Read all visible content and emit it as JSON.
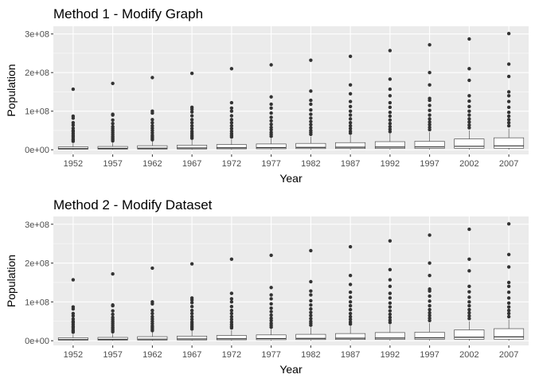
{
  "chart_data": [
    {
      "type": "boxplot",
      "title": "Method 1 - Modify Graph",
      "xlabel": "Year",
      "ylabel": "Population",
      "ylim": [
        -12000000.0,
        320000000.0
      ],
      "yticks": [
        0,
        100000000,
        200000000,
        300000000
      ],
      "ytick_labels": [
        "0e+00",
        "1e+08",
        "2e+08",
        "3e+08"
      ],
      "categories": [
        "1952",
        "1957",
        "1962",
        "1967",
        "1972",
        "1977",
        "1982",
        "1987",
        "1992",
        "1997",
        "2002",
        "2007"
      ],
      "grid": true,
      "boxes": [
        {
          "min": 60000,
          "q1": 1500000,
          "median": 3000000,
          "q3": 7500000,
          "whisker_max": 16000000,
          "outliers": [
            22000000,
            25000000,
            28000000,
            33000000,
            37000000,
            42000000,
            47000000,
            50000000,
            56000000,
            64000000,
            70000000,
            82000000,
            87000000,
            157000000
          ]
        },
        {
          "min": 60000,
          "q1": 1600000,
          "median": 3500000,
          "q3": 8500000,
          "whisker_max": 18000000,
          "outliers": [
            23000000,
            27000000,
            31000000,
            35000000,
            40000000,
            45000000,
            50000000,
            55000000,
            60000000,
            68000000,
            77000000,
            90000000,
            92000000,
            172000000
          ]
        },
        {
          "min": 70000,
          "q1": 1800000,
          "median": 4000000,
          "q3": 10500000,
          "whisker_max": 22000000,
          "outliers": [
            26000000,
            30000000,
            34000000,
            38000000,
            44000000,
            50000000,
            56000000,
            62000000,
            70000000,
            78000000,
            95000000,
            100000000,
            187000000
          ]
        },
        {
          "min": 80000,
          "q1": 2000000,
          "median": 4500000,
          "q3": 12000000,
          "whisker_max": 25000000,
          "outliers": [
            30000000,
            34000000,
            38000000,
            43000000,
            48000000,
            55000000,
            62000000,
            70000000,
            78000000,
            88000000,
            98000000,
            105000000,
            110000000,
            198000000
          ]
        },
        {
          "min": 90000,
          "q1": 2300000,
          "median": 5000000,
          "q3": 13500000,
          "whisker_max": 27000000,
          "outliers": [
            33000000,
            37000000,
            42000000,
            48000000,
            55000000,
            62000000,
            70000000,
            78000000,
            88000000,
            100000000,
            108000000,
            122000000,
            210000000
          ]
        },
        {
          "min": 100000,
          "q1": 2500000,
          "median": 5500000,
          "q3": 15000000,
          "whisker_max": 30000000,
          "outliers": [
            35000000,
            40000000,
            45000000,
            52000000,
            58000000,
            66000000,
            75000000,
            84000000,
            95000000,
            108000000,
            118000000,
            137000000,
            220000000
          ]
        },
        {
          "min": 110000,
          "q1": 2800000,
          "median": 6000000,
          "q3": 16500000,
          "whisker_max": 34000000,
          "outliers": [
            40000000,
            45000000,
            50000000,
            57000000,
            65000000,
            73000000,
            82000000,
            92000000,
            103000000,
            118000000,
            128000000,
            152000000,
            232000000
          ]
        },
        {
          "min": 120000,
          "q1": 3000000,
          "median": 6500000,
          "q3": 18500000,
          "whisker_max": 38000000,
          "outliers": [
            43000000,
            48000000,
            55000000,
            62000000,
            70000000,
            80000000,
            90000000,
            100000000,
            112000000,
            125000000,
            145000000,
            168000000,
            242000000
          ]
        },
        {
          "min": 130000,
          "q1": 3300000,
          "median": 7000000,
          "q3": 21000000,
          "whisker_max": 42000000,
          "outliers": [
            47000000,
            53000000,
            60000000,
            68000000,
            77000000,
            87000000,
            97000000,
            110000000,
            122000000,
            140000000,
            157000000,
            183000000,
            257000000
          ]
        },
        {
          "min": 140000,
          "q1": 3500000,
          "median": 7500000,
          "q3": 22000000,
          "whisker_max": 46000000,
          "outliers": [
            52000000,
            58000000,
            65000000,
            72000000,
            80000000,
            90000000,
            102000000,
            115000000,
            128000000,
            133000000,
            168000000,
            200000000,
            272000000
          ]
        },
        {
          "min": 150000,
          "q1": 3800000,
          "median": 9000000,
          "q3": 28000000,
          "whisker_max": 50000000,
          "outliers": [
            57000000,
            64000000,
            72000000,
            80000000,
            90000000,
            100000000,
            112000000,
            126000000,
            140000000,
            180000000,
            210000000,
            287000000
          ]
        },
        {
          "min": 160000,
          "q1": 4000000,
          "median": 10000000,
          "q3": 31000000,
          "whisker_max": 55000000,
          "outliers": [
            62000000,
            70000000,
            78000000,
            87000000,
            97000000,
            110000000,
            125000000,
            140000000,
            150000000,
            190000000,
            222000000,
            301000000
          ]
        }
      ]
    },
    {
      "type": "boxplot",
      "title": "Method 2 - Modify Dataset",
      "xlabel": "Year",
      "ylabel": "Population",
      "ylim": [
        -12000000.0,
        320000000.0
      ],
      "yticks": [
        0,
        100000000,
        200000000,
        300000000
      ],
      "ytick_labels": [
        "0e+00",
        "1e+08",
        "2e+08",
        "3e+08"
      ],
      "categories": [
        "1952",
        "1957",
        "1962",
        "1967",
        "1972",
        "1977",
        "1982",
        "1987",
        "1992",
        "1997",
        "2002",
        "2007"
      ],
      "grid": true,
      "boxes": [
        {
          "min": 60000,
          "q1": 1500000,
          "median": 3000000,
          "q3": 7500000,
          "whisker_max": 16000000,
          "outliers": [
            22000000,
            25000000,
            28000000,
            33000000,
            37000000,
            42000000,
            47000000,
            50000000,
            56000000,
            64000000,
            70000000,
            82000000,
            87000000,
            157000000
          ]
        },
        {
          "min": 60000,
          "q1": 1600000,
          "median": 3500000,
          "q3": 8500000,
          "whisker_max": 18000000,
          "outliers": [
            23000000,
            27000000,
            31000000,
            35000000,
            40000000,
            45000000,
            50000000,
            55000000,
            60000000,
            68000000,
            77000000,
            90000000,
            92000000,
            172000000
          ]
        },
        {
          "min": 70000,
          "q1": 1800000,
          "median": 4000000,
          "q3": 10500000,
          "whisker_max": 22000000,
          "outliers": [
            26000000,
            30000000,
            34000000,
            38000000,
            44000000,
            50000000,
            56000000,
            62000000,
            70000000,
            78000000,
            95000000,
            100000000,
            187000000
          ]
        },
        {
          "min": 80000,
          "q1": 2000000,
          "median": 4500000,
          "q3": 12000000,
          "whisker_max": 25000000,
          "outliers": [
            30000000,
            34000000,
            38000000,
            43000000,
            48000000,
            55000000,
            62000000,
            70000000,
            78000000,
            88000000,
            98000000,
            105000000,
            110000000,
            198000000
          ]
        },
        {
          "min": 90000,
          "q1": 2300000,
          "median": 5000000,
          "q3": 13500000,
          "whisker_max": 27000000,
          "outliers": [
            33000000,
            37000000,
            42000000,
            48000000,
            55000000,
            62000000,
            70000000,
            78000000,
            88000000,
            100000000,
            108000000,
            122000000,
            210000000
          ]
        },
        {
          "min": 100000,
          "q1": 2500000,
          "median": 5500000,
          "q3": 15000000,
          "whisker_max": 30000000,
          "outliers": [
            35000000,
            40000000,
            45000000,
            52000000,
            58000000,
            66000000,
            75000000,
            84000000,
            95000000,
            108000000,
            118000000,
            137000000,
            220000000
          ]
        },
        {
          "min": 110000,
          "q1": 2800000,
          "median": 6000000,
          "q3": 16500000,
          "whisker_max": 34000000,
          "outliers": [
            40000000,
            45000000,
            50000000,
            57000000,
            65000000,
            73000000,
            82000000,
            92000000,
            103000000,
            118000000,
            128000000,
            152000000,
            232000000
          ]
        },
        {
          "min": 120000,
          "q1": 3000000,
          "median": 6500000,
          "q3": 18500000,
          "whisker_max": 38000000,
          "outliers": [
            43000000,
            48000000,
            55000000,
            62000000,
            70000000,
            80000000,
            90000000,
            100000000,
            112000000,
            125000000,
            145000000,
            168000000,
            242000000
          ]
        },
        {
          "min": 130000,
          "q1": 3300000,
          "median": 7000000,
          "q3": 21000000,
          "whisker_max": 42000000,
          "outliers": [
            47000000,
            53000000,
            60000000,
            68000000,
            77000000,
            87000000,
            97000000,
            110000000,
            122000000,
            140000000,
            157000000,
            183000000,
            257000000
          ]
        },
        {
          "min": 140000,
          "q1": 3500000,
          "median": 7500000,
          "q3": 22000000,
          "whisker_max": 46000000,
          "outliers": [
            52000000,
            58000000,
            65000000,
            72000000,
            80000000,
            90000000,
            102000000,
            115000000,
            128000000,
            133000000,
            168000000,
            200000000,
            272000000
          ]
        },
        {
          "min": 150000,
          "q1": 3800000,
          "median": 9000000,
          "q3": 28000000,
          "whisker_max": 50000000,
          "outliers": [
            57000000,
            64000000,
            72000000,
            80000000,
            90000000,
            100000000,
            112000000,
            126000000,
            140000000,
            180000000,
            210000000,
            287000000
          ]
        },
        {
          "min": 160000,
          "q1": 4000000,
          "median": 10000000,
          "q3": 31000000,
          "whisker_max": 55000000,
          "outliers": [
            62000000,
            70000000,
            78000000,
            87000000,
            97000000,
            110000000,
            125000000,
            140000000,
            150000000,
            190000000,
            222000000,
            301000000
          ]
        }
      ]
    }
  ],
  "colors": {
    "panel_background": "#EBEBEB",
    "grid_major": "#FFFFFF",
    "box_fill": "#FFFFFF",
    "box_line": "#333333",
    "outlier": "#333333",
    "tick_text": "#4D4D4D",
    "tick_mark": "#333333"
  }
}
